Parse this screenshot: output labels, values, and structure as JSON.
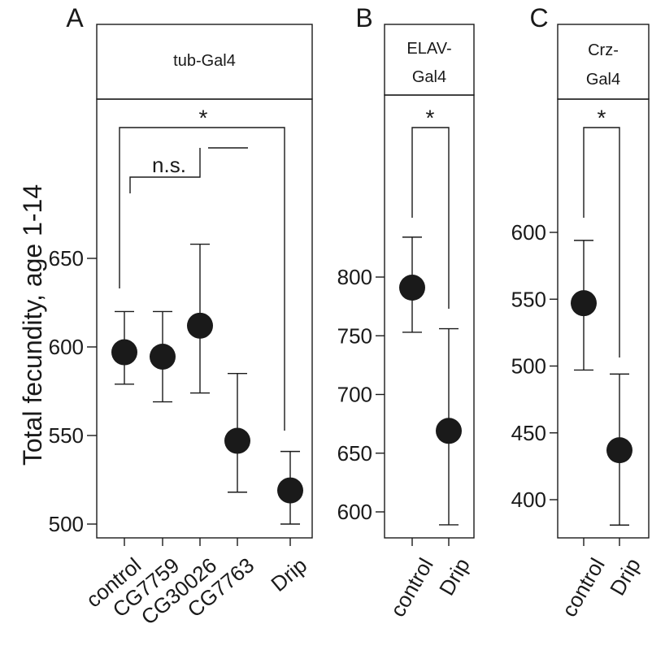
{
  "ylabel": "Total fecundity, age 1-14",
  "chart_data": [
    {
      "type": "scatter",
      "panel_label": "A",
      "strip_title": [
        "tub-Gal4"
      ],
      "categories": [
        "control",
        "CG7759",
        "CG30026",
        "CG7763",
        "Drip"
      ],
      "means": [
        597,
        594.5,
        612,
        547,
        519
      ],
      "error_low": [
        579,
        569,
        574,
        518,
        500
      ],
      "error_high": [
        620,
        620,
        658,
        585,
        541
      ],
      "yticks": [
        500,
        550,
        600,
        650
      ],
      "ylim": [
        497,
        660
      ],
      "annotations": [
        "n.s.",
        "*"
      ]
    },
    {
      "type": "scatter",
      "panel_label": "B",
      "strip_title": [
        "ELAV-",
        "Gal4"
      ],
      "categories": [
        "control",
        "Drip"
      ],
      "means": [
        791,
        669
      ],
      "error_low": [
        753,
        589
      ],
      "error_high": [
        834,
        756
      ],
      "yticks": [
        600,
        650,
        700,
        750,
        800
      ],
      "ylim": [
        580,
        876
      ],
      "annotations": [
        "*"
      ]
    },
    {
      "type": "scatter",
      "panel_label": "C",
      "strip_title": [
        "Crz-",
        "Gal4"
      ],
      "categories": [
        "control",
        "Drip"
      ],
      "means": [
        547,
        437
      ],
      "error_low": [
        497,
        381
      ],
      "error_high": [
        594,
        494
      ],
      "yticks": [
        400,
        450,
        500,
        550,
        600
      ],
      "ylim": [
        366,
        626
      ],
      "annotations": [
        "*"
      ]
    }
  ]
}
